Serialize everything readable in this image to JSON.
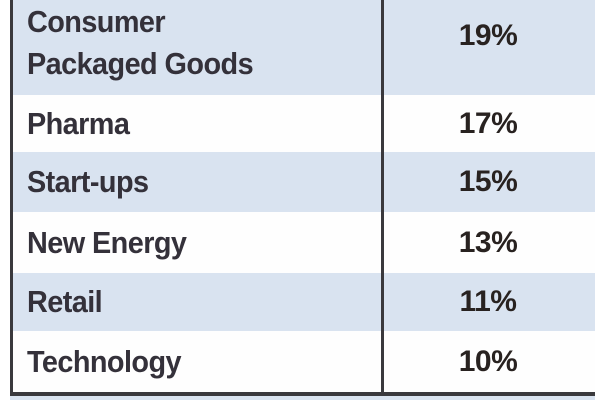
{
  "chart_data": {
    "type": "table",
    "categories": [
      "Consumer Packaged Goods",
      "Pharma",
      "Start-ups",
      "New Energy",
      "Retail",
      "Technology"
    ],
    "values": [
      19,
      17,
      15,
      13,
      11,
      10
    ],
    "value_format": "percent",
    "legend_position": "none",
    "notes": "Two-column table, category left-aligned, percent value centered in right column, alternating row shading"
  },
  "table": {
    "rows": [
      {
        "label_line1": "Consumer",
        "label_line2": "Packaged Goods",
        "value": "19%"
      },
      {
        "label": "Pharma",
        "value": "17%"
      },
      {
        "label": "Start-ups",
        "value": "15%"
      },
      {
        "label": "New Energy",
        "value": "13%"
      },
      {
        "label": "Retail",
        "value": "11%"
      },
      {
        "label": "Technology",
        "value": "10%"
      }
    ]
  },
  "colors": {
    "row_shade_blue": "#d9e3f0",
    "row_shade_white": "#fefefe",
    "rule_dark": "#3a393d",
    "label_text": "#34313a",
    "value_text": "#282220",
    "page_background": "#ffffff"
  }
}
